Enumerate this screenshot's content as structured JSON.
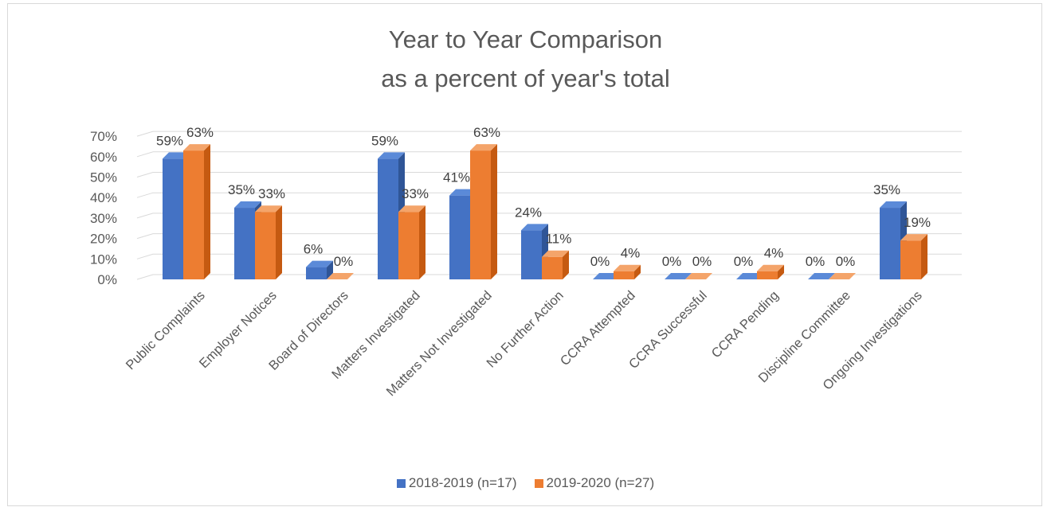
{
  "chart_data": {
    "type": "bar",
    "title": "Year to Year Comparison",
    "subtitle": "as a percent of year's total",
    "categories": [
      "Public Complaints",
      "Employer Notices",
      "Board of Directors",
      "Matters Investigated",
      "Matters Not Investigated",
      "No Further Action",
      "CCRA Attempted",
      "CCRA Successful",
      "CCRA Pending",
      "Discipline Committee",
      "Ongoing Investigations"
    ],
    "series": [
      {
        "name": "2018-2019 (n=17)",
        "values": [
          59,
          35,
          6,
          59,
          41,
          24,
          0,
          0,
          0,
          0,
          35
        ],
        "labels": [
          "59%",
          "35%",
          "6%",
          "59%",
          "41%",
          "24%",
          "0%",
          "0%",
          "0%",
          "0%",
          "35%"
        ],
        "color": "#4472C4",
        "side_color": "#2F5597",
        "top_color": "#5B8AD8"
      },
      {
        "name": "2019-2020 (n=27)",
        "values": [
          63,
          33,
          0,
          33,
          63,
          11,
          4,
          0,
          4,
          0,
          19
        ],
        "labels": [
          "63%",
          "33%",
          "0%",
          "33%",
          "63%",
          "11%",
          "4%",
          "0%",
          "4%",
          "0%",
          "19%"
        ],
        "color": "#ED7D31",
        "side_color": "#C55A11",
        "top_color": "#F4A46A"
      }
    ],
    "yticks": [
      "0%",
      "10%",
      "20%",
      "30%",
      "40%",
      "50%",
      "60%",
      "70%"
    ],
    "ylim": [
      0,
      70
    ],
    "xlabel": "",
    "ylabel": "",
    "grid": true,
    "legend_position": "bottom",
    "style": "3d-clustered-column"
  }
}
